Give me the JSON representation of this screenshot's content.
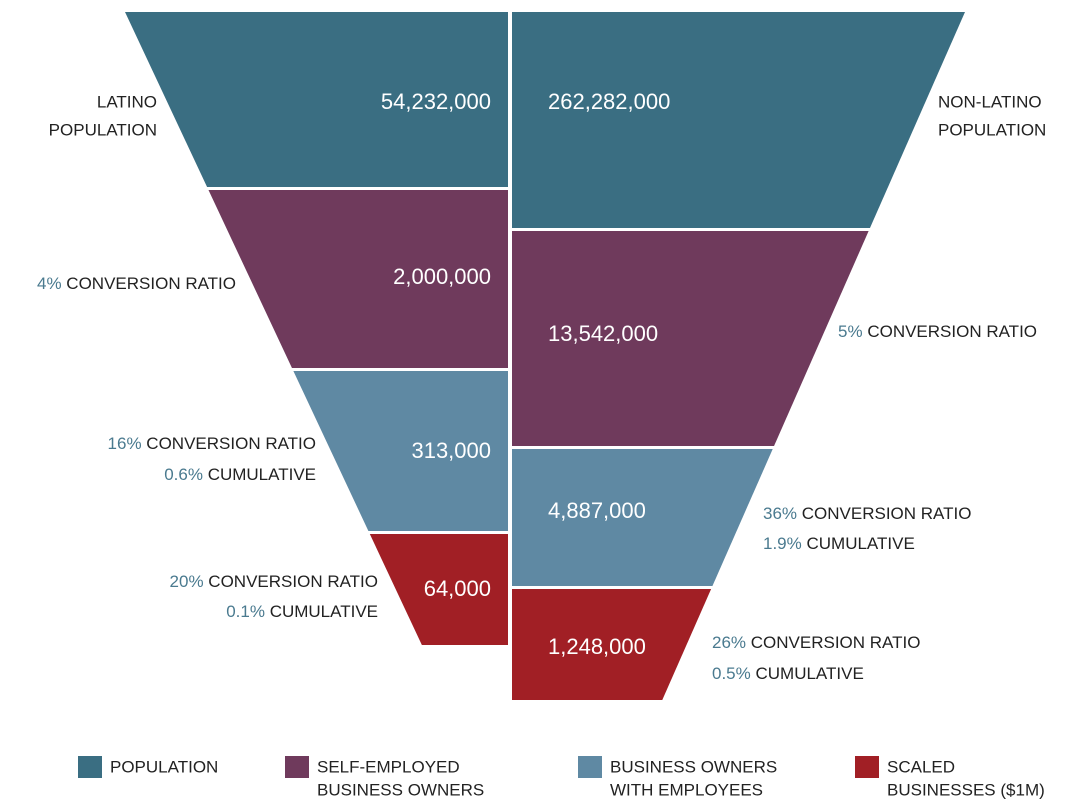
{
  "left": {
    "label": [
      "LATINO",
      "POPULATION"
    ],
    "stages": [
      {
        "value": "54,232,000"
      },
      {
        "value": "2,000,000",
        "ratio": "4%",
        "ratio_text": "CONVERSION RATIO"
      },
      {
        "value": "313,000",
        "ratio": "16%",
        "ratio_text": "CONVERSION RATIO",
        "cumulative": "0.6%",
        "cumulative_text": "CUMULATIVE"
      },
      {
        "value": "64,000",
        "ratio": "20%",
        "ratio_text": "CONVERSION RATIO",
        "cumulative": "0.1%",
        "cumulative_text": "CUMULATIVE"
      }
    ]
  },
  "right": {
    "label": [
      "NON-LATINO",
      "POPULATION"
    ],
    "stages": [
      {
        "value": "262,282,000"
      },
      {
        "value": "13,542,000",
        "ratio": "5%",
        "ratio_text": "CONVERSION RATIO"
      },
      {
        "value": "4,887,000",
        "ratio": "36%",
        "ratio_text": "CONVERSION RATIO",
        "cumulative": "1.9%",
        "cumulative_text": "CUMULATIVE"
      },
      {
        "value": "1,248,000",
        "ratio": "26%",
        "ratio_text": "CONVERSION RATIO",
        "cumulative": "0.5%",
        "cumulative_text": "CUMULATIVE"
      }
    ]
  },
  "legend": [
    {
      "lines": [
        "POPULATION"
      ],
      "color": "#3a6e82"
    },
    {
      "lines": [
        "SELF-EMPLOYED",
        "BUSINESS OWNERS"
      ],
      "color": "#6f3a5c"
    },
    {
      "lines": [
        "BUSINESS OWNERS",
        "WITH EMPLOYEES"
      ],
      "color": "#5f89a3"
    },
    {
      "lines": [
        "SCALED",
        "BUSINESSES ($1M)"
      ],
      "color": "#a11f25"
    }
  ]
}
